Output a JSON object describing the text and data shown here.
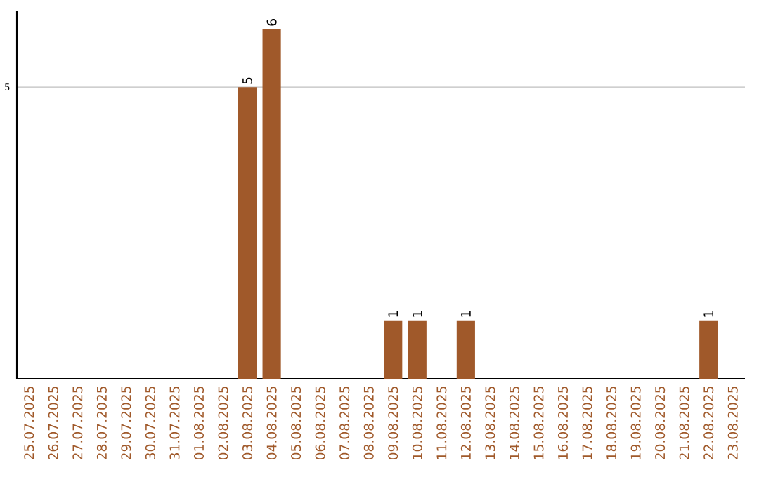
{
  "chart_data": {
    "type": "bar",
    "categories": [
      "25.07.2025",
      "26.07.2025",
      "27.07.2025",
      "28.07.2025",
      "29.07.2025",
      "30.07.2025",
      "31.07.2025",
      "01.08.2025",
      "02.08.2025",
      "03.08.2025",
      "04.08.2025",
      "05.08.2025",
      "06.08.2025",
      "07.08.2025",
      "08.08.2025",
      "09.08.2025",
      "10.08.2025",
      "11.08.2025",
      "12.08.2025",
      "13.08.2025",
      "14.08.2025",
      "15.08.2025",
      "16.08.2025",
      "17.08.2025",
      "18.08.2025",
      "19.08.2025",
      "20.08.2025",
      "21.08.2025",
      "22.08.2025",
      "23.08.2025"
    ],
    "values": [
      0,
      0,
      0,
      0,
      0,
      0,
      0,
      0,
      0,
      5,
      6,
      0,
      0,
      0,
      0,
      1,
      1,
      0,
      1,
      0,
      0,
      0,
      0,
      0,
      0,
      0,
      0,
      0,
      1,
      0
    ],
    "value_labels": [
      null,
      null,
      null,
      null,
      null,
      null,
      null,
      null,
      null,
      "5",
      "6",
      null,
      null,
      null,
      null,
      "1",
      "1",
      null,
      "1",
      null,
      null,
      null,
      null,
      null,
      null,
      null,
      null,
      null,
      "1",
      null
    ],
    "color": "#a0592a",
    "ylim": [
      0,
      6.3
    ],
    "yticks": [
      5
    ],
    "grid": "y"
  }
}
